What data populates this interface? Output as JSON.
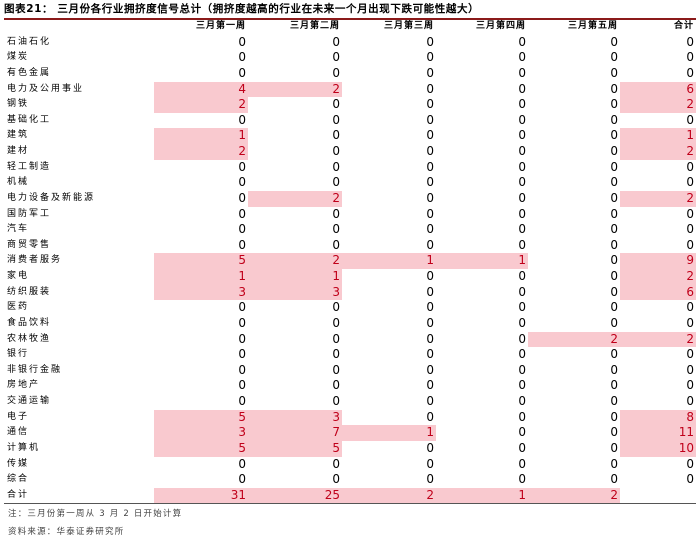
{
  "title": "图表21：  三月份各行业拥挤度信号总计（拥挤度越高的行业在未来一个月出现下跌可能性越大）",
  "columns": [
    "三月第一周",
    "三月第二周",
    "三月第三周",
    "三月第四周",
    "三月第五周",
    "合计"
  ],
  "rows": [
    {
      "name": "石油石化",
      "values": [
        0,
        0,
        0,
        0,
        0,
        0
      ]
    },
    {
      "name": "煤炭",
      "values": [
        0,
        0,
        0,
        0,
        0,
        0
      ]
    },
    {
      "name": "有色金属",
      "values": [
        0,
        0,
        0,
        0,
        0,
        0
      ]
    },
    {
      "name": "电力及公用事业",
      "values": [
        4,
        2,
        0,
        0,
        0,
        6
      ]
    },
    {
      "name": "钢铁",
      "values": [
        2,
        0,
        0,
        0,
        0,
        2
      ]
    },
    {
      "name": "基础化工",
      "values": [
        0,
        0,
        0,
        0,
        0,
        0
      ]
    },
    {
      "name": "建筑",
      "values": [
        1,
        0,
        0,
        0,
        0,
        1
      ]
    },
    {
      "name": "建材",
      "values": [
        2,
        0,
        0,
        0,
        0,
        2
      ]
    },
    {
      "name": "轻工制造",
      "values": [
        0,
        0,
        0,
        0,
        0,
        0
      ]
    },
    {
      "name": "机械",
      "values": [
        0,
        0,
        0,
        0,
        0,
        0
      ]
    },
    {
      "name": "电力设备及新能源",
      "values": [
        0,
        2,
        0,
        0,
        0,
        2
      ]
    },
    {
      "name": "国防军工",
      "values": [
        0,
        0,
        0,
        0,
        0,
        0
      ]
    },
    {
      "name": "汽车",
      "values": [
        0,
        0,
        0,
        0,
        0,
        0
      ]
    },
    {
      "name": "商贸零售",
      "values": [
        0,
        0,
        0,
        0,
        0,
        0
      ]
    },
    {
      "name": "消费者服务",
      "values": [
        5,
        2,
        1,
        1,
        0,
        9
      ]
    },
    {
      "name": "家电",
      "values": [
        1,
        1,
        0,
        0,
        0,
        2
      ]
    },
    {
      "name": "纺织服装",
      "values": [
        3,
        3,
        0,
        0,
        0,
        6
      ]
    },
    {
      "name": "医药",
      "values": [
        0,
        0,
        0,
        0,
        0,
        0
      ]
    },
    {
      "name": "食品饮料",
      "values": [
        0,
        0,
        0,
        0,
        0,
        0
      ]
    },
    {
      "name": "农林牧渔",
      "values": [
        0,
        0,
        0,
        0,
        2,
        2
      ]
    },
    {
      "name": "银行",
      "values": [
        0,
        0,
        0,
        0,
        0,
        0
      ]
    },
    {
      "name": "非银行金融",
      "values": [
        0,
        0,
        0,
        0,
        0,
        0
      ]
    },
    {
      "name": "房地产",
      "values": [
        0,
        0,
        0,
        0,
        0,
        0
      ]
    },
    {
      "name": "交通运输",
      "values": [
        0,
        0,
        0,
        0,
        0,
        0
      ]
    },
    {
      "name": "电子",
      "values": [
        5,
        3,
        0,
        0,
        0,
        8
      ]
    },
    {
      "name": "通信",
      "values": [
        3,
        7,
        1,
        0,
        0,
        11
      ]
    },
    {
      "name": "计算机",
      "values": [
        5,
        5,
        0,
        0,
        0,
        10
      ]
    },
    {
      "name": "传媒",
      "values": [
        0,
        0,
        0,
        0,
        0,
        0
      ]
    },
    {
      "name": "综合",
      "values": [
        0,
        0,
        0,
        0,
        0,
        0
      ]
    }
  ],
  "total_row": {
    "name": "合计",
    "values": [
      31,
      25,
      2,
      1,
      2,
      ""
    ]
  },
  "highlight_color": "#f9c9cf",
  "highlight_text_color": "#c0001a",
  "note": "注：三月份第一周从 3 月 2 日开始计算",
  "source": "资料来源：华泰证券研究所"
}
